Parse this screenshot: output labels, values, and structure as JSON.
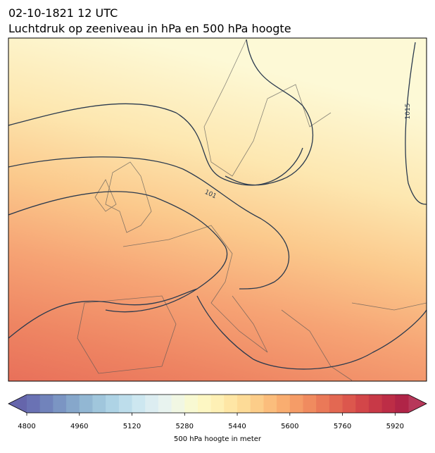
{
  "title": "02-10-1821 12 UTC",
  "subtitle": "Luchtdruk op zeeniveau in hPa en 500 hPa hoogte",
  "contour_labels": [
    "1015",
    "101"
  ],
  "colorbar": {
    "label": "500 hPa hoogte in meter",
    "lim": [
      4800,
      5960
    ],
    "ticks": [
      4800,
      4960,
      5120,
      5280,
      5440,
      5600,
      5760,
      5920
    ],
    "colors": [
      "#6a72b4",
      "#7183bb",
      "#7b95c3",
      "#86a7cb",
      "#92b7d3",
      "#a0c6dc",
      "#aed3e5",
      "#bdddeb",
      "#cde7f0",
      "#dcedf1",
      "#e8f3ef",
      "#f1f7e3",
      "#f8f9d2",
      "#fdf7c3",
      "#fef0b5",
      "#fee6a5",
      "#fddb97",
      "#fccd89",
      "#fbbd7c",
      "#f9ad70",
      "#f59c67",
      "#f08b5f",
      "#ea7958",
      "#e36852",
      "#dc574d",
      "#d34649",
      "#c83947",
      "#bd2d46",
      "#b02447"
    ],
    "under_color": "#6565ab",
    "over_color": "#b7385a"
  }
}
